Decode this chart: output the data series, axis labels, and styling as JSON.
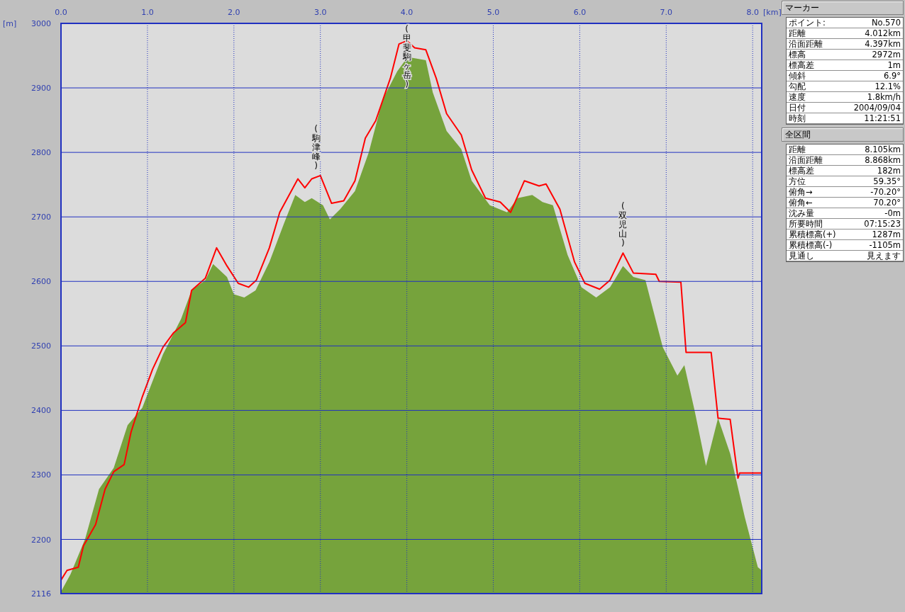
{
  "chart_data": [
    {
      "type": "area",
      "xlabel": "[km]",
      "ylabel": "[m]",
      "xlim": [
        0,
        8.105
      ],
      "ylim": [
        2116,
        3000
      ],
      "xticks": [
        {
          "value": 0,
          "label": "0.0"
        },
        {
          "value": 1,
          "label": "1.0"
        },
        {
          "value": 2,
          "label": "2.0"
        },
        {
          "value": 3,
          "label": "3.0"
        },
        {
          "value": 4,
          "label": "4.0"
        },
        {
          "value": 5,
          "label": "5.0"
        },
        {
          "value": 6,
          "label": "6.0"
        },
        {
          "value": 7,
          "label": "7.0"
        },
        {
          "value": 8,
          "label": "8.0"
        }
      ],
      "yticks": [
        2116,
        2200,
        2300,
        2400,
        2500,
        2600,
        2700,
        2800,
        2900,
        3000
      ],
      "grid": true,
      "series": [
        {
          "type": "area",
          "color": "#76a33c",
          "x": [
            0,
            0.11,
            0.28,
            0.44,
            0.61,
            0.77,
            0.94,
            1.18,
            1.39,
            1.51,
            1.67,
            1.76,
            1.92,
            2.0,
            2.12,
            2.25,
            2.41,
            2.58,
            2.71,
            2.82,
            2.9,
            3.03,
            3.11,
            3.23,
            3.4,
            3.56,
            3.72,
            3.89,
            4.01,
            4.22,
            4.3,
            4.46,
            4.63,
            4.75,
            4.96,
            5.16,
            5.28,
            5.45,
            5.57,
            5.69,
            5.86,
            6.02,
            6.19,
            6.35,
            6.5,
            6.62,
            6.76,
            6.96,
            7.13,
            7.21,
            7.33,
            7.46,
            7.6,
            7.74,
            7.91,
            8.06,
            8.105
          ],
          "values": [
            2119,
            2146,
            2201,
            2278,
            2311,
            2377,
            2404,
            2487,
            2542,
            2586,
            2602,
            2627,
            2607,
            2580,
            2575,
            2586,
            2630,
            2690,
            2734,
            2723,
            2729,
            2718,
            2696,
            2712,
            2740,
            2800,
            2882,
            2926,
            2948,
            2943,
            2893,
            2833,
            2805,
            2756,
            2718,
            2707,
            2729,
            2734,
            2723,
            2718,
            2641,
            2591,
            2575,
            2591,
            2624,
            2607,
            2602,
            2498,
            2454,
            2470,
            2399,
            2314,
            2388,
            2333,
            2234,
            2157,
            2152
          ]
        },
        {
          "type": "line",
          "color": "#ff0000",
          "x": [
            0,
            0.07,
            0.2,
            0.26,
            0.4,
            0.51,
            0.61,
            0.73,
            0.81,
            0.94,
            1.06,
            1.18,
            1.3,
            1.44,
            1.51,
            1.67,
            1.8,
            1.92,
            2.05,
            2.17,
            2.26,
            2.41,
            2.53,
            2.74,
            2.82,
            2.9,
            3.0,
            3.13,
            3.27,
            3.4,
            3.52,
            3.64,
            3.81,
            3.91,
            4.0,
            4.09,
            4.22,
            4.34,
            4.46,
            4.63,
            4.75,
            4.91,
            5.08,
            5.2,
            5.36,
            5.53,
            5.61,
            5.77,
            5.94,
            6.06,
            6.23,
            6.35,
            6.5,
            6.62,
            6.88,
            6.92,
            7.17,
            7.23,
            7.52,
            7.6,
            7.74,
            7.83,
            7.85,
            8.1
          ],
          "values": [
            2137,
            2152,
            2157,
            2190,
            2223,
            2278,
            2305,
            2316,
            2366,
            2421,
            2464,
            2498,
            2520,
            2536,
            2586,
            2605,
            2652,
            2624,
            2597,
            2591,
            2602,
            2652,
            2707,
            2759,
            2745,
            2759,
            2764,
            2721,
            2725,
            2756,
            2822,
            2849,
            2915,
            2968,
            2973,
            2962,
            2959,
            2915,
            2860,
            2827,
            2773,
            2729,
            2723,
            2707,
            2756,
            2748,
            2751,
            2712,
            2630,
            2597,
            2588,
            2602,
            2644,
            2613,
            2611,
            2600,
            2599,
            2490,
            2490,
            2388,
            2386,
            2295,
            2303,
            2303
          ]
        }
      ],
      "annotations": [
        {
          "text": "(駒津峰)",
          "x": 2.95,
          "y": 2764
        },
        {
          "text": "(甲斐駒ヶ岳)",
          "x": 4.0,
          "y": 2973
        },
        {
          "text": "(双児山)",
          "x": 6.5,
          "y": 2644
        }
      ]
    },
    {
      "type": "other",
      "title": "マーカー",
      "annotations": [
        "ポイント:",
        "No.570",
        "距離",
        "4.012km",
        "沿面距離",
        "4.397km",
        "標高",
        "2972m",
        "標高差",
        "1m",
        "傾斜",
        "6.9°",
        "勾配",
        "12.1%",
        "速度",
        "1.8km/h",
        "日付",
        "2004/09/04",
        "時刻",
        "11:21:51"
      ]
    },
    {
      "type": "other",
      "title": "全区間",
      "annotations": [
        "距離",
        "8.105km",
        "沿面距離",
        "8.868km",
        "標高差",
        "182m",
        "方位",
        "59.35°",
        "俯角→",
        "-70.20°",
        "俯角←",
        "70.20°",
        "沈み量",
        "-0m",
        "所要時間",
        "07:15:23",
        "累積標高(+)",
        "1287m",
        "累積標高(-)",
        "-1105m",
        "見通し",
        "見えます"
      ]
    }
  ]
}
